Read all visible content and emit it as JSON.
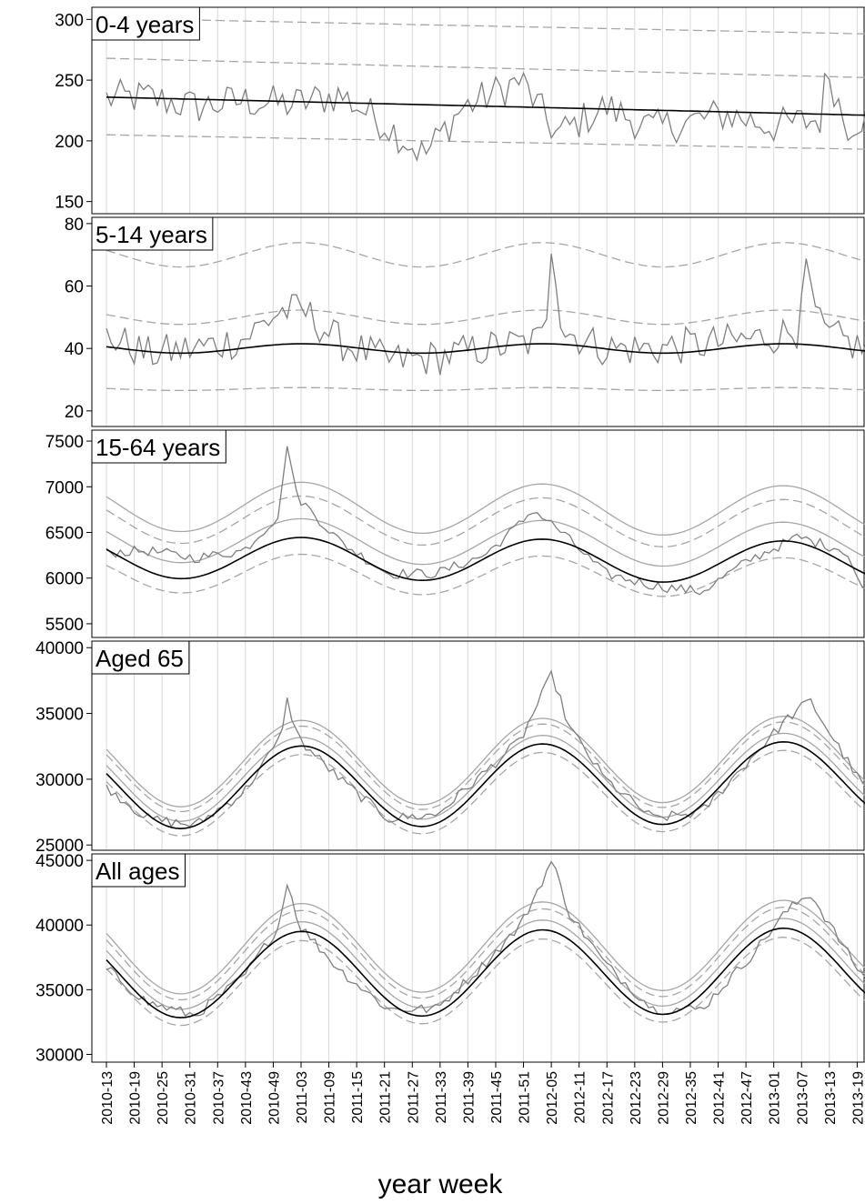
{
  "chart_data": {
    "type": "line",
    "xlabel": "year week",
    "x_ticks": [
      "2010-13",
      "2010-19",
      "2010-25",
      "2010-31",
      "2010-37",
      "2010-43",
      "2010-49",
      "2011-03",
      "2011-09",
      "2011-15",
      "2011-21",
      "2011-27",
      "2011-33",
      "2011-39",
      "2011-45",
      "2011-51",
      "2012-05",
      "2012-11",
      "2012-17",
      "2012-23",
      "2012-29",
      "2012-35",
      "2012-41",
      "2012-47",
      "2013-01",
      "2013-07",
      "2013-13",
      "2013-19"
    ],
    "vertical_grid": true,
    "legend": "none",
    "colors": {
      "observed": "#7f7f7f",
      "baseline": "#000000",
      "thresholds": "#a6a6a6",
      "grid": "#d9d9d9"
    },
    "panels": [
      {
        "label": "0-4 years",
        "ylim": [
          140,
          310
        ],
        "yticks": [
          150,
          200,
          250,
          300
        ],
        "baseline_start": 236,
        "baseline_end": 221,
        "observed_anchors": [
          [
            2010.24,
            235
          ],
          [
            2010.4,
            236
          ],
          [
            2010.6,
            228
          ],
          [
            2010.8,
            233
          ],
          [
            2011.0,
            230
          ],
          [
            2011.2,
            238
          ],
          [
            2011.4,
            212
          ],
          [
            2011.55,
            188
          ],
          [
            2011.7,
            226
          ],
          [
            2011.95,
            250
          ],
          [
            2012.1,
            205
          ],
          [
            2012.3,
            228
          ],
          [
            2012.5,
            210
          ],
          [
            2012.8,
            222
          ],
          [
            2013.0,
            212
          ],
          [
            2013.2,
            218
          ],
          [
            2013.22,
            262
          ],
          [
            2013.3,
            212
          ],
          [
            2013.37,
            220
          ]
        ],
        "thresholds": [
          {
            "start": 205,
            "end": 193,
            "dash": true
          },
          {
            "start": 268,
            "end": 252,
            "dash": true
          },
          {
            "start": 301,
            "end": 288,
            "dash": true
          }
        ]
      },
      {
        "label": "5-14 years",
        "ylim": [
          15,
          82
        ],
        "yticks": [
          20,
          40,
          60,
          80
        ],
        "baseline_mean": 40,
        "baseline_amp": 1.5,
        "observed_anchors": [
          [
            2010.24,
            44
          ],
          [
            2010.4,
            38
          ],
          [
            2010.6,
            40
          ],
          [
            2010.8,
            43
          ],
          [
            2010.95,
            52
          ],
          [
            2011.05,
            52
          ],
          [
            2011.2,
            42
          ],
          [
            2011.4,
            36
          ],
          [
            2011.6,
            37
          ],
          [
            2011.8,
            40
          ],
          [
            2012.0,
            42
          ],
          [
            2012.05,
            44
          ],
          [
            2012.08,
            78
          ],
          [
            2012.12,
            46
          ],
          [
            2012.3,
            40
          ],
          [
            2012.5,
            40
          ],
          [
            2012.8,
            42
          ],
          [
            2013.0,
            44
          ],
          [
            2013.1,
            46
          ],
          [
            2013.12,
            67
          ],
          [
            2013.2,
            45
          ],
          [
            2013.37,
            40
          ]
        ],
        "thresholds": [
          {
            "offset": -13,
            "dash": true
          },
          {
            "offset": 10,
            "dash": true
          },
          {
            "offset": 30,
            "dash": true
          }
        ]
      },
      {
        "label": "15-64 years",
        "ylim": [
          5350,
          7620
        ],
        "yticks": [
          5500,
          6000,
          6500,
          7000,
          7500
        ],
        "baseline_mean": 6230,
        "baseline_amp": 230,
        "baseline_trend": -60,
        "observed_anchors": [
          [
            2010.24,
            6280
          ],
          [
            2010.4,
            6300
          ],
          [
            2010.6,
            6220
          ],
          [
            2010.8,
            6300
          ],
          [
            2010.95,
            6700
          ],
          [
            2010.98,
            7500
          ],
          [
            2011.02,
            6900
          ],
          [
            2011.2,
            6400
          ],
          [
            2011.4,
            6050
          ],
          [
            2011.6,
            6050
          ],
          [
            2011.8,
            6250
          ],
          [
            2011.95,
            6600
          ],
          [
            2012.0,
            6750
          ],
          [
            2012.1,
            6550
          ],
          [
            2012.3,
            6050
          ],
          [
            2012.5,
            5920
          ],
          [
            2012.7,
            5850
          ],
          [
            2012.9,
            6200
          ],
          [
            2013.1,
            6450
          ],
          [
            2013.3,
            6300
          ],
          [
            2013.37,
            5850
          ]
        ],
        "thresholds": [
          {
            "offset": -170,
            "dash": true
          },
          {
            "offset": 190,
            "dash": false
          },
          {
            "offset": 420,
            "dash": true
          },
          {
            "offset": 560,
            "dash": false
          }
        ]
      },
      {
        "label": "Aged 65",
        "ylim": [
          24600,
          40500
        ],
        "yticks": [
          25000,
          30000,
          35000,
          40000
        ],
        "baseline_mean": 29300,
        "baseline_amp": 3100,
        "baseline_trend": 500,
        "observed_anchors": [
          [
            2010.24,
            29300
          ],
          [
            2010.4,
            27000
          ],
          [
            2010.6,
            26500
          ],
          [
            2010.8,
            29000
          ],
          [
            2010.95,
            33000
          ],
          [
            2010.98,
            36000
          ],
          [
            2011.03,
            33000
          ],
          [
            2011.2,
            30000
          ],
          [
            2011.4,
            27000
          ],
          [
            2011.6,
            27300
          ],
          [
            2011.8,
            30500
          ],
          [
            2011.95,
            33000
          ],
          [
            2012.08,
            38000
          ],
          [
            2012.15,
            34000
          ],
          [
            2012.3,
            30000
          ],
          [
            2012.5,
            27000
          ],
          [
            2012.7,
            27500
          ],
          [
            2012.9,
            31500
          ],
          [
            2013.05,
            34500
          ],
          [
            2013.15,
            36000
          ],
          [
            2013.25,
            33000
          ],
          [
            2013.37,
            29500
          ]
        ],
        "thresholds": [
          {
            "offset": -600,
            "dash": true
          },
          {
            "offset": 600,
            "dash": false
          },
          {
            "offset": 1400,
            "dash": true
          },
          {
            "offset": 1800,
            "dash": false
          }
        ]
      },
      {
        "label": "All ages",
        "ylim": [
          29400,
          45500
        ],
        "yticks": [
          30000,
          35000,
          40000,
          45000
        ],
        "baseline_mean": 36100,
        "baseline_amp": 3300,
        "baseline_trend": 400,
        "observed_anchors": [
          [
            2010.24,
            36500
          ],
          [
            2010.4,
            34000
          ],
          [
            2010.6,
            33000
          ],
          [
            2010.8,
            36000
          ],
          [
            2010.95,
            40000
          ],
          [
            2010.98,
            43500
          ],
          [
            2011.03,
            40000
          ],
          [
            2011.2,
            36500
          ],
          [
            2011.4,
            33500
          ],
          [
            2011.6,
            33500
          ],
          [
            2011.8,
            37000
          ],
          [
            2011.95,
            40000
          ],
          [
            2012.08,
            45000
          ],
          [
            2012.15,
            41000
          ],
          [
            2012.3,
            37000
          ],
          [
            2012.5,
            33500
          ],
          [
            2012.7,
            33500
          ],
          [
            2012.9,
            37500
          ],
          [
            2013.05,
            41000
          ],
          [
            2013.15,
            42500
          ],
          [
            2013.25,
            39500
          ],
          [
            2013.37,
            36000
          ]
        ],
        "thresholds": [
          {
            "offset": -650,
            "dash": true
          },
          {
            "offset": 700,
            "dash": false
          },
          {
            "offset": 1500,
            "dash": true
          },
          {
            "offset": 2000,
            "dash": false
          }
        ]
      }
    ]
  }
}
